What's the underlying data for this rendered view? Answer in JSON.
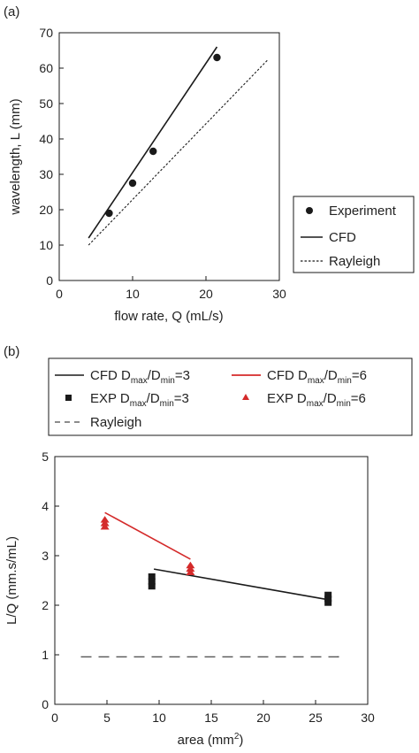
{
  "chart_data": [
    {
      "panel_label": "(a)",
      "type": "scatter",
      "xlabel": "flow rate, Q (mL/s)",
      "ylabel": "wavelength, L (mm)",
      "xlim": [
        0,
        30
      ],
      "ylim": [
        0,
        70
      ],
      "xticks": [
        0,
        10,
        20,
        30
      ],
      "yticks": [
        0,
        10,
        20,
        30,
        40,
        50,
        60,
        70
      ],
      "legend": {
        "position": "outside right",
        "entries": [
          "Experiment",
          "CFD",
          "Rayleigh"
        ]
      },
      "series": [
        {
          "name": "Experiment",
          "kind": "points",
          "marker": "circle",
          "color": "#1a1a1a",
          "points": [
            [
              6.8,
              19
            ],
            [
              10,
              27.5
            ],
            [
              12.8,
              36.5
            ],
            [
              21.5,
              63
            ]
          ]
        },
        {
          "name": "CFD",
          "kind": "line",
          "style": "solid",
          "color": "#1a1a1a",
          "points": [
            [
              4,
              12
            ],
            [
              21.5,
              66
            ]
          ]
        },
        {
          "name": "Rayleigh",
          "kind": "line",
          "style": "dotted",
          "color": "#1a1a1a",
          "points": [
            [
              4,
              10
            ],
            [
              28.5,
              62.5
            ]
          ]
        }
      ]
    },
    {
      "panel_label": "(b)",
      "type": "scatter",
      "xlabel": "area (mm",
      "xlabel_sup": "2",
      "xlabel_close": ")",
      "ylabel": "L/Q (mm.s/mL)",
      "xlim": [
        0,
        30
      ],
      "ylim": [
        0,
        5
      ],
      "xticks": [
        0,
        5,
        10,
        15,
        20,
        25,
        30
      ],
      "yticks": [
        0,
        1,
        2,
        3,
        4,
        5
      ],
      "legend": {
        "position": "top",
        "entries": [
          {
            "prefix": "CFD D",
            "sub1": "max",
            "mid": "/D",
            "sub2": "min",
            "suffix": "=3"
          },
          {
            "prefix": "CFD D",
            "sub1": "max",
            "mid": "/D",
            "sub2": "min",
            "suffix": "=6"
          },
          {
            "prefix": "EXP D",
            "sub1": "max",
            "mid": "/D",
            "sub2": "min",
            "suffix": "=3"
          },
          {
            "prefix": "EXP D",
            "sub1": "max",
            "mid": "/D",
            "sub2": "min",
            "suffix": "=6"
          },
          {
            "text": "Rayleigh"
          }
        ]
      },
      "series": [
        {
          "name": "CFD Dmax/Dmin=3",
          "kind": "line",
          "style": "solid",
          "color": "#1a1a1a",
          "points": [
            [
              9.5,
              2.73
            ],
            [
              26,
              2.12
            ]
          ]
        },
        {
          "name": "CFD Dmax/Dmin=6",
          "kind": "line",
          "style": "solid",
          "color": "#d42a2a",
          "points": [
            [
              4.8,
              3.87
            ],
            [
              13,
              2.93
            ]
          ]
        },
        {
          "name": "EXP Dmax/Dmin=3",
          "kind": "points",
          "marker": "square",
          "color": "#1a1a1a",
          "points": [
            [
              9.3,
              2.38
            ],
            [
              9.3,
              2.48
            ],
            [
              9.3,
              2.58
            ],
            [
              26.2,
              2.05
            ],
            [
              26.2,
              2.13
            ],
            [
              26.2,
              2.21
            ]
          ]
        },
        {
          "name": "EXP Dmax/Dmin=6",
          "kind": "points",
          "marker": "triangle",
          "color": "#d42a2a",
          "points": [
            [
              4.8,
              3.58
            ],
            [
              4.8,
              3.65
            ],
            [
              4.8,
              3.72
            ],
            [
              13,
              2.66
            ],
            [
              13,
              2.73
            ],
            [
              13,
              2.8
            ]
          ]
        },
        {
          "name": "Rayleigh",
          "kind": "line",
          "style": "dashed",
          "color": "#1a1a1a",
          "points": [
            [
              2.5,
              0.96
            ],
            [
              27.5,
              0.96
            ]
          ]
        }
      ]
    }
  ]
}
